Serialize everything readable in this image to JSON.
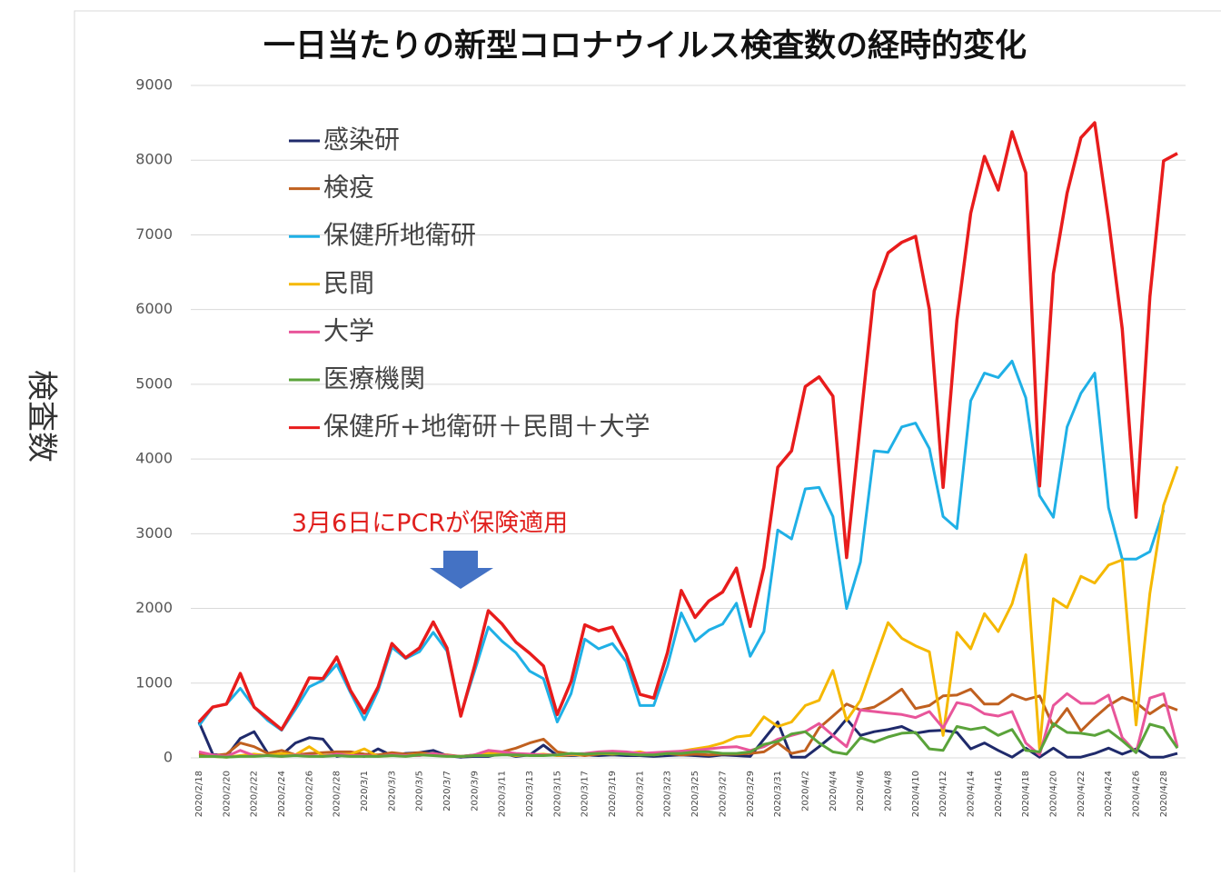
{
  "chart_data": {
    "type": "line",
    "title": "一日当たりの新型コロナウイルス検査数の経時的変化",
    "ylabel": "検査数",
    "annotation": "3月6日にPCRが保険適用",
    "legend": "upper left",
    "grid": true,
    "ylim": [
      0,
      9000
    ],
    "yticks": [
      0,
      1000,
      2000,
      3000,
      4000,
      5000,
      6000,
      7000,
      8000,
      9000
    ],
    "categories": [
      "2020/2/18",
      null,
      "2020/2/20",
      null,
      "2020/2/22",
      null,
      "2020/2/24",
      null,
      "2020/2/26",
      null,
      "2020/2/28",
      null,
      "2020/3/1",
      null,
      "2020/3/3",
      null,
      "2020/3/5",
      null,
      "2020/3/7",
      null,
      "2020/3/9",
      null,
      "2020/3/11",
      null,
      "2020/3/13",
      null,
      "2020/3/15",
      null,
      "2020/3/17",
      null,
      "2020/3/19",
      null,
      "2020/3/21",
      null,
      "2020/3/23",
      null,
      "2020/3/25",
      null,
      "2020/3/27",
      null,
      "2020/3/29",
      null,
      "2020/3/31",
      null,
      "2020/4/2",
      null,
      "2020/4/4",
      null,
      "2020/4/6",
      null,
      "2020/4/8",
      null,
      "2020/4/10",
      null,
      "2020/4/12",
      null,
      "2020/4/14",
      null,
      "2020/4/16",
      null,
      "2020/4/18",
      null,
      "2020/4/20",
      null,
      "2020/4/22",
      null,
      "2020/4/24",
      null,
      "2020/4/26",
      null,
      "2020/4/28",
      null
    ],
    "series": [
      {
        "name": "感染研",
        "color": "#1f2a6b",
        "values": [
          480,
          50,
          20,
          260,
          350,
          60,
          40,
          200,
          270,
          250,
          20,
          50,
          20,
          120,
          30,
          60,
          70,
          100,
          30,
          10,
          20,
          20,
          60,
          20,
          40,
          170,
          30,
          30,
          40,
          30,
          40,
          30,
          30,
          20,
          30,
          40,
          30,
          20,
          40,
          30,
          20,
          250,
          480,
          10,
          10,
          150,
          300,
          520,
          300,
          350,
          380,
          420,
          330,
          360,
          370,
          340,
          120,
          200,
          100,
          10,
          130,
          10,
          130,
          10,
          10,
          60,
          130,
          50,
          120,
          10,
          10,
          60
        ]
      },
      {
        "name": "検疫",
        "color": "#c0601f",
        "values": [
          50,
          30,
          50,
          200,
          150,
          60,
          100,
          40,
          60,
          70,
          80,
          80,
          50,
          40,
          70,
          50,
          70,
          50,
          40,
          20,
          40,
          60,
          80,
          130,
          200,
          250,
          80,
          50,
          30,
          50,
          70,
          50,
          40,
          50,
          60,
          40,
          50,
          40,
          50,
          50,
          60,
          80,
          200,
          60,
          100,
          400,
          560,
          720,
          640,
          680,
          790,
          920,
          660,
          700,
          830,
          840,
          920,
          720,
          720,
          850,
          780,
          830,
          420,
          660,
          360,
          540,
          700,
          810,
          740,
          590,
          710,
          640
        ]
      },
      {
        "name": "保健所地衛研",
        "color": "#1fb0e6",
        "values": [
          430,
          680,
          720,
          930,
          680,
          500,
          370,
          650,
          950,
          1040,
          1250,
          870,
          510,
          900,
          1480,
          1330,
          1420,
          1680,
          1430,
          580,
          1160,
          1750,
          1560,
          1410,
          1160,
          1060,
          480,
          860,
          1590,
          1460,
          1530,
          1290,
          700,
          700,
          1230,
          1940,
          1560,
          1710,
          1790,
          2070,
          1360,
          1690,
          3050,
          2930,
          3600,
          3620,
          3230,
          2000,
          2620,
          4110,
          4090,
          4430,
          4480,
          4140,
          3230,
          3070,
          4780,
          5150,
          5090,
          5310,
          4820,
          3510,
          3220,
          4430,
          4880,
          5150,
          3350,
          2660,
          2660,
          2760,
          3320,
          null
        ]
      },
      {
        "name": "民間",
        "color": "#f5b800",
        "values": [
          20,
          20,
          10,
          30,
          50,
          30,
          60,
          40,
          150,
          30,
          40,
          50,
          120,
          20,
          30,
          30,
          40,
          60,
          30,
          20,
          30,
          60,
          50,
          30,
          40,
          50,
          30,
          40,
          50,
          60,
          50,
          60,
          80,
          40,
          60,
          90,
          120,
          150,
          200,
          280,
          300,
          550,
          420,
          480,
          700,
          770,
          1170,
          500,
          770,
          1290,
          1810,
          1600,
          1500,
          1420,
          300,
          1680,
          1460,
          1930,
          1690,
          2060,
          2720,
          120,
          2130,
          2010,
          2430,
          2340,
          2580,
          2650,
          440,
          2200,
          3380,
          3900
        ]
      },
      {
        "name": "大学",
        "color": "#e8559a",
        "values": [
          80,
          40,
          20,
          100,
          30,
          30,
          20,
          40,
          30,
          20,
          50,
          30,
          30,
          20,
          40,
          30,
          30,
          60,
          30,
          20,
          40,
          100,
          80,
          60,
          50,
          40,
          40,
          50,
          60,
          80,
          90,
          80,
          60,
          70,
          80,
          90,
          100,
          120,
          140,
          150,
          100,
          150,
          250,
          300,
          350,
          460,
          300,
          150,
          640,
          620,
          600,
          580,
          540,
          620,
          400,
          740,
          700,
          590,
          560,
          620,
          200,
          40,
          700,
          860,
          730,
          730,
          840,
          270,
          70,
          800,
          860,
          150
        ]
      },
      {
        "name": "医療機関",
        "color": "#5aa33a",
        "values": [
          20,
          20,
          10,
          20,
          20,
          30,
          20,
          30,
          20,
          20,
          30,
          20,
          20,
          20,
          30,
          20,
          40,
          30,
          20,
          20,
          30,
          30,
          40,
          40,
          30,
          30,
          40,
          60,
          50,
          60,
          60,
          50,
          40,
          40,
          60,
          60,
          80,
          80,
          60,
          60,
          80,
          180,
          220,
          320,
          350,
          200,
          80,
          50,
          270,
          210,
          280,
          330,
          340,
          120,
          100,
          420,
          380,
          410,
          300,
          380,
          100,
          80,
          460,
          340,
          330,
          300,
          370,
          230,
          70,
          450,
          400,
          130
        ]
      },
      {
        "name": "保健所+地衛研＋民間＋大学",
        "color": "#e81c1c",
        "values": [
          480,
          680,
          720,
          1130,
          680,
          530,
          380,
          700,
          1070,
          1060,
          1350,
          900,
          600,
          950,
          1530,
          1340,
          1470,
          1820,
          1470,
          560,
          1230,
          1970,
          1790,
          1550,
          1400,
          1230,
          580,
          1020,
          1780,
          1700,
          1750,
          1390,
          850,
          800,
          1410,
          2240,
          1880,
          2100,
          2220,
          2540,
          1760,
          2550,
          3890,
          4110,
          4970,
          5100,
          4840,
          2680,
          4480,
          6250,
          6760,
          6900,
          6980,
          6000,
          3620,
          5860,
          7290,
          8050,
          7600,
          8380,
          7830,
          3640,
          6480,
          7560,
          8300,
          8500,
          7200,
          5740,
          3220,
          6170,
          7990,
          8090
        ]
      }
    ]
  }
}
